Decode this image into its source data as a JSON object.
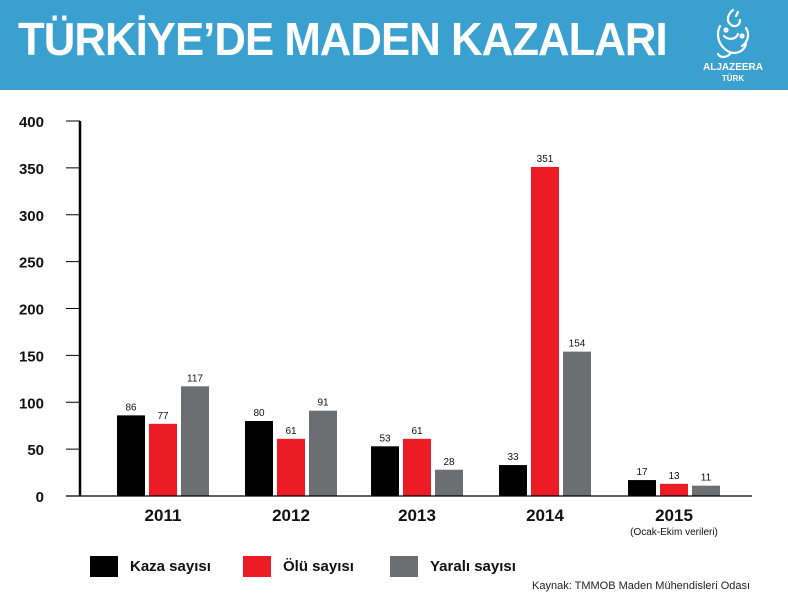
{
  "header": {
    "title": "TÜRKİYE’DE MADEN KAZALARI",
    "logo_brand": "ALJAZEERA",
    "logo_sub": "TÜRK",
    "logo_icon": "al-jazeera-calligraphy-logo-icon"
  },
  "colors": {
    "header_bg": "#3aa0d0",
    "kaza": "#000000",
    "olu": "#ed1c24",
    "yarali": "#6d6e71"
  },
  "chart_data": {
    "type": "bar",
    "title": "TÜRKİYE’DE MADEN KAZALARI",
    "xlabel": "",
    "ylabel": "",
    "ylim": [
      0,
      400
    ],
    "yticks": [
      0,
      50,
      100,
      150,
      200,
      250,
      300,
      350,
      400
    ],
    "categories": [
      "2011",
      "2012",
      "2013",
      "2014",
      "2015"
    ],
    "category_notes": [
      "",
      "",
      "",
      "",
      "(Ocak-Ekim verileri)"
    ],
    "series": [
      {
        "name": "Kaza sayısı",
        "color": "#000000",
        "values": [
          86,
          80,
          53,
          33,
          17
        ]
      },
      {
        "name": "Ölü sayısı",
        "color": "#ed1c24",
        "values": [
          77,
          61,
          61,
          351,
          13
        ]
      },
      {
        "name": "Yaralı sayısı",
        "color": "#6d6e71",
        "values": [
          117,
          91,
          28,
          154,
          11
        ]
      }
    ],
    "legend_position": "bottom-left",
    "grid": false
  },
  "source": "Kaynak:  TMMOB Maden Mühendisleri Odası"
}
